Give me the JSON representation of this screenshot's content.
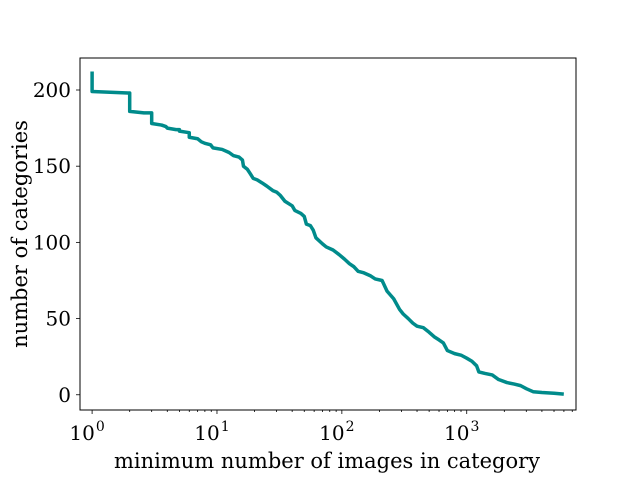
{
  "chart_data": {
    "type": "line",
    "title": "",
    "xlabel": "minimum number of images in category",
    "ylabel": "number of categories",
    "x_scale": "log",
    "xlim": [
      0.8,
      7500
    ],
    "ylim": [
      -10,
      221
    ],
    "grid": false,
    "x_ticks": [
      {
        "base": "10",
        "exp": "0",
        "value": 1
      },
      {
        "base": "10",
        "exp": "1",
        "value": 10
      },
      {
        "base": "10",
        "exp": "2",
        "value": 100
      },
      {
        "base": "10",
        "exp": "3",
        "value": 1000
      }
    ],
    "y_ticks": [
      "0",
      "50",
      "100",
      "150",
      "200"
    ],
    "series": [
      {
        "color": "#008b8b",
        "points": [
          [
            1,
            211
          ],
          [
            1,
            199
          ],
          [
            2,
            198
          ],
          [
            2,
            186
          ],
          [
            2.6,
            185
          ],
          [
            3,
            185
          ],
          [
            3,
            178
          ],
          [
            3.6,
            177
          ],
          [
            3.9,
            176
          ],
          [
            4,
            175
          ],
          [
            4.7,
            174
          ],
          [
            5,
            174
          ],
          [
            5,
            173
          ],
          [
            6,
            172
          ],
          [
            6,
            169
          ],
          [
            7,
            168
          ],
          [
            7.5,
            166
          ],
          [
            8,
            165
          ],
          [
            8.9,
            164
          ],
          [
            9.3,
            162
          ],
          [
            11,
            161
          ],
          [
            12.5,
            159
          ],
          [
            13.5,
            157
          ],
          [
            15,
            156
          ],
          [
            16,
            154
          ],
          [
            16.3,
            150
          ],
          [
            17.5,
            148
          ],
          [
            18.5,
            145
          ],
          [
            19.5,
            142
          ],
          [
            21,
            141
          ],
          [
            23,
            139
          ],
          [
            25,
            137
          ],
          [
            28,
            134
          ],
          [
            30,
            133
          ],
          [
            32,
            131
          ],
          [
            35,
            127
          ],
          [
            40,
            124
          ],
          [
            42,
            121
          ],
          [
            47,
            119
          ],
          [
            50,
            117
          ],
          [
            52,
            112
          ],
          [
            56,
            111
          ],
          [
            59,
            108
          ],
          [
            62,
            103
          ],
          [
            70,
            99
          ],
          [
            75,
            97
          ],
          [
            85,
            95
          ],
          [
            95,
            92
          ],
          [
            105,
            89
          ],
          [
            115,
            86
          ],
          [
            125,
            84
          ],
          [
            135,
            81
          ],
          [
            150,
            80
          ],
          [
            170,
            78
          ],
          [
            185,
            76
          ],
          [
            210,
            75
          ],
          [
            230,
            68
          ],
          [
            260,
            63
          ],
          [
            290,
            56
          ],
          [
            310,
            53
          ],
          [
            340,
            50
          ],
          [
            370,
            47
          ],
          [
            400,
            45
          ],
          [
            450,
            44
          ],
          [
            500,
            41
          ],
          [
            550,
            38
          ],
          [
            600,
            36
          ],
          [
            650,
            34
          ],
          [
            700,
            29
          ],
          [
            800,
            27
          ],
          [
            900,
            26
          ],
          [
            1000,
            24
          ],
          [
            1100,
            22
          ],
          [
            1200,
            19
          ],
          [
            1250,
            15
          ],
          [
            1400,
            14
          ],
          [
            1600,
            13
          ],
          [
            1800,
            10
          ],
          [
            2100,
            8
          ],
          [
            2400,
            7
          ],
          [
            2700,
            6
          ],
          [
            3000,
            4
          ],
          [
            3400,
            2
          ],
          [
            4000,
            1.5
          ],
          [
            5000,
            1
          ],
          [
            5800,
            0.5
          ]
        ]
      }
    ]
  }
}
